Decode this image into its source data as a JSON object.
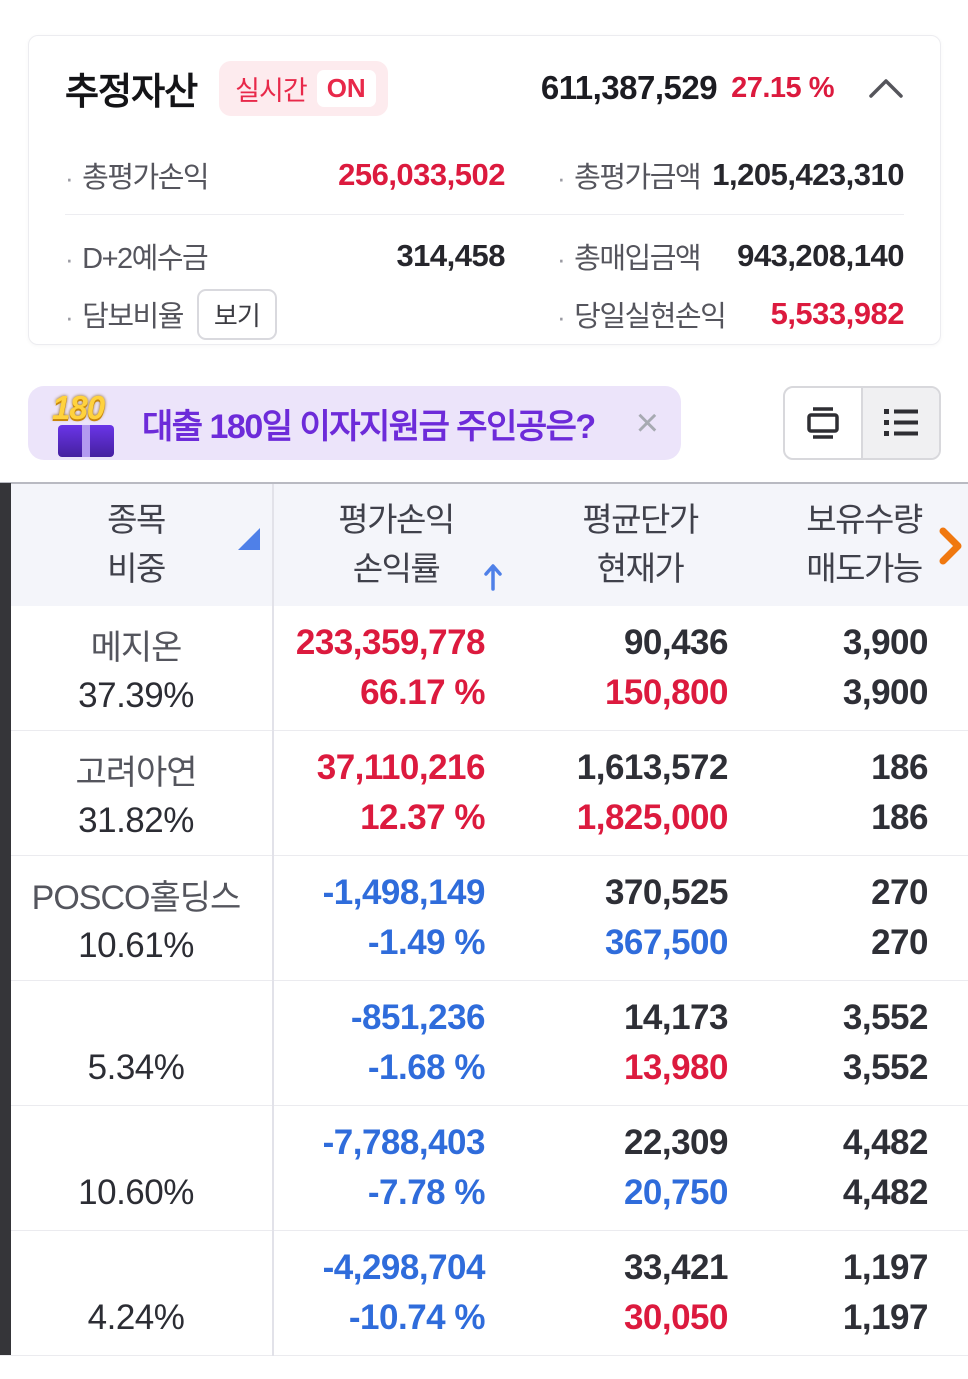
{
  "colors": {
    "red": "#dc1a3e",
    "blue": "#2f6cdb",
    "orange": "#f0780f",
    "purple": "#6d2bd9",
    "sort_blue": "#4f80e8",
    "left_bar": "#353539"
  },
  "summary": {
    "title": "추정자산",
    "realtime_label": "실시간",
    "realtime_state": "ON",
    "asset_value": "611,387,529",
    "asset_rate": "27.15 %",
    "bullet": "·",
    "row1_left": {
      "label": "총평가손익",
      "value": "256,033,502"
    },
    "row1_right": {
      "label": "총평가금액",
      "value": "1,205,423,310"
    },
    "row2_left": {
      "label": "D+2예수금",
      "value": "314,458"
    },
    "row2_right": {
      "label": "총매입금액",
      "value": "943,208,140"
    },
    "row3_left": {
      "label": "담보비율",
      "button_label": "보기"
    },
    "row3_right": {
      "label": "당일실현손익",
      "value": "5,533,982"
    }
  },
  "banner": {
    "badge_text": "180",
    "text": "대출 180일 이자지원금 주인공은?",
    "close_glyph": "×"
  },
  "view_toggle": {
    "left_icon": "card-view-icon",
    "right_icon": "list-view-icon"
  },
  "table": {
    "headers": [
      {
        "line1": "종목",
        "line2": "비중"
      },
      {
        "line1": "평가손익",
        "line2": "손익률"
      },
      {
        "line1": "평균단가",
        "line2": "현재가"
      },
      {
        "line1": "보유수량",
        "line2": "매도가능"
      }
    ],
    "rows": [
      {
        "name": "메지온",
        "weight": "37.39%",
        "profit": "233,359,778",
        "rate": "66.17 %",
        "pl_color": "red",
        "avg_price": "90,436",
        "cur_price": "150,800",
        "cur_color": "red",
        "qty": "3,900",
        "sellable": "3,900"
      },
      {
        "name": "고려아연",
        "weight": "31.82%",
        "profit": "37,110,216",
        "rate": "12.37 %",
        "pl_color": "red",
        "avg_price": "1,613,572",
        "cur_price": "1,825,000",
        "cur_color": "red",
        "qty": "186",
        "sellable": "186"
      },
      {
        "name": "POSCO홀딩스",
        "weight": "10.61%",
        "profit": "-1,498,149",
        "rate": "-1.49 %",
        "pl_color": "blue",
        "avg_price": "370,525",
        "cur_price": "367,500",
        "cur_color": "blue",
        "qty": "270",
        "sellable": "270"
      },
      {
        "name": "",
        "weight": "5.34%",
        "profit": "-851,236",
        "rate": "-1.68 %",
        "pl_color": "blue",
        "avg_price": "14,173",
        "cur_price": "13,980",
        "cur_color": "red",
        "qty": "3,552",
        "sellable": "3,552"
      },
      {
        "name": "",
        "weight": "10.60%",
        "profit": "-7,788,403",
        "rate": "-7.78 %",
        "pl_color": "blue",
        "avg_price": "22,309",
        "cur_price": "20,750",
        "cur_color": "blue",
        "qty": "4,482",
        "sellable": "4,482"
      },
      {
        "name": "",
        "weight": "4.24%",
        "profit": "-4,298,704",
        "rate": "-10.74 %",
        "pl_color": "blue",
        "avg_price": "33,421",
        "cur_price": "30,050",
        "cur_color": "red",
        "qty": "1,197",
        "sellable": "1,197"
      }
    ]
  }
}
